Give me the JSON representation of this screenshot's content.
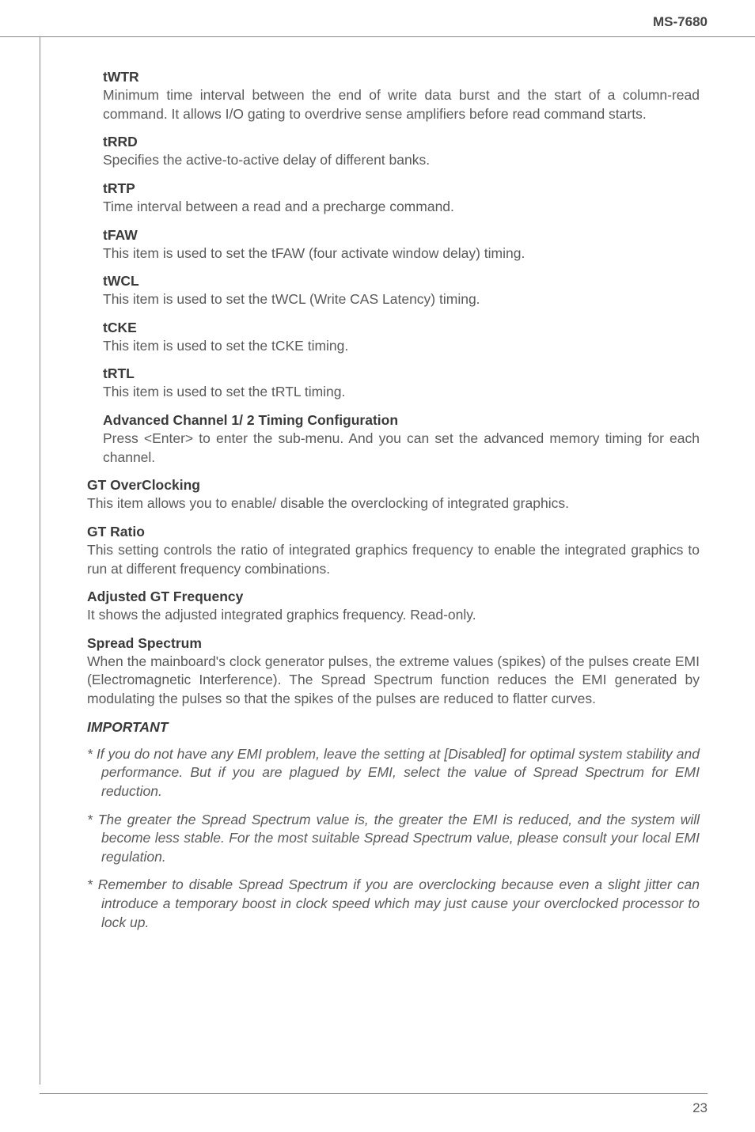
{
  "header": {
    "model": "MS-7680"
  },
  "sections": [
    {
      "title": "tWTR",
      "body": "Minimum time interval between the end of write data burst and the start of a column-read command. It allows I/O gating to overdrive sense amplifiers before read command starts.",
      "outdent": false
    },
    {
      "title": "tRRD",
      "body": "Specifies the active-to-active delay of different banks.",
      "outdent": false
    },
    {
      "title": "tRTP",
      "body": "Time interval between a read and a precharge command.",
      "outdent": false
    },
    {
      "title": "tFAW",
      "body": "This item is used to set the tFAW (four activate window delay) timing.",
      "outdent": false
    },
    {
      "title": "tWCL",
      "body": "This item is used to set the tWCL (Write CAS Latency) timing.",
      "outdent": false
    },
    {
      "title": "tCKE",
      "body": "This item is used to set the tCKE timing.",
      "outdent": false
    },
    {
      "title": "tRTL",
      "body": "This item is used to set the tRTL timing.",
      "outdent": false
    },
    {
      "title": "Advanced Channel 1/ 2 Timing Configuration",
      "body": "Press <Enter> to enter the sub-menu. And you can set the advanced memory timing for each channel.",
      "outdent": false
    },
    {
      "title": "GT OverClocking",
      "body": "This item allows you to enable/ disable the overclocking of integrated graphics.",
      "outdent": true
    },
    {
      "title": "GT Ratio",
      "body": "This setting controls the ratio of integrated graphics frequency to enable the integrated graphics to run at different frequency combinations.",
      "outdent": true
    },
    {
      "title": "Adjusted GT Frequency",
      "body": "It shows the adjusted integrated graphics frequency. Read-only.",
      "outdent": true
    },
    {
      "title": "Spread Spectrum",
      "body": "When the mainboard's clock generator pulses, the extreme values (spikes) of the pulses create EMI (Electromagnetic Interference). The Spread Spectrum function reduces the EMI generated by modulating the pulses so that the spikes of the pulses are reduced to flatter curves.",
      "outdent": true
    }
  ],
  "important": {
    "heading": "IMPORTANT",
    "items": [
      "* If you do not have any EMI problem, leave the setting at [Disabled] for optimal system stability and performance. But if you are plagued by EMI, select the value of Spread Spectrum for EMI reduction.",
      "* The greater the Spread Spectrum value is, the greater the EMI is reduced, and the system will become less stable. For the most suitable Spread Spectrum value, please consult your local EMI regulation.",
      "* Remember to disable Spread Spectrum if you are overclocking because even a slight jitter can introduce a temporary boost in clock speed which may just cause your overclocked processor to lock up."
    ]
  },
  "footer": {
    "page_number": "23"
  }
}
